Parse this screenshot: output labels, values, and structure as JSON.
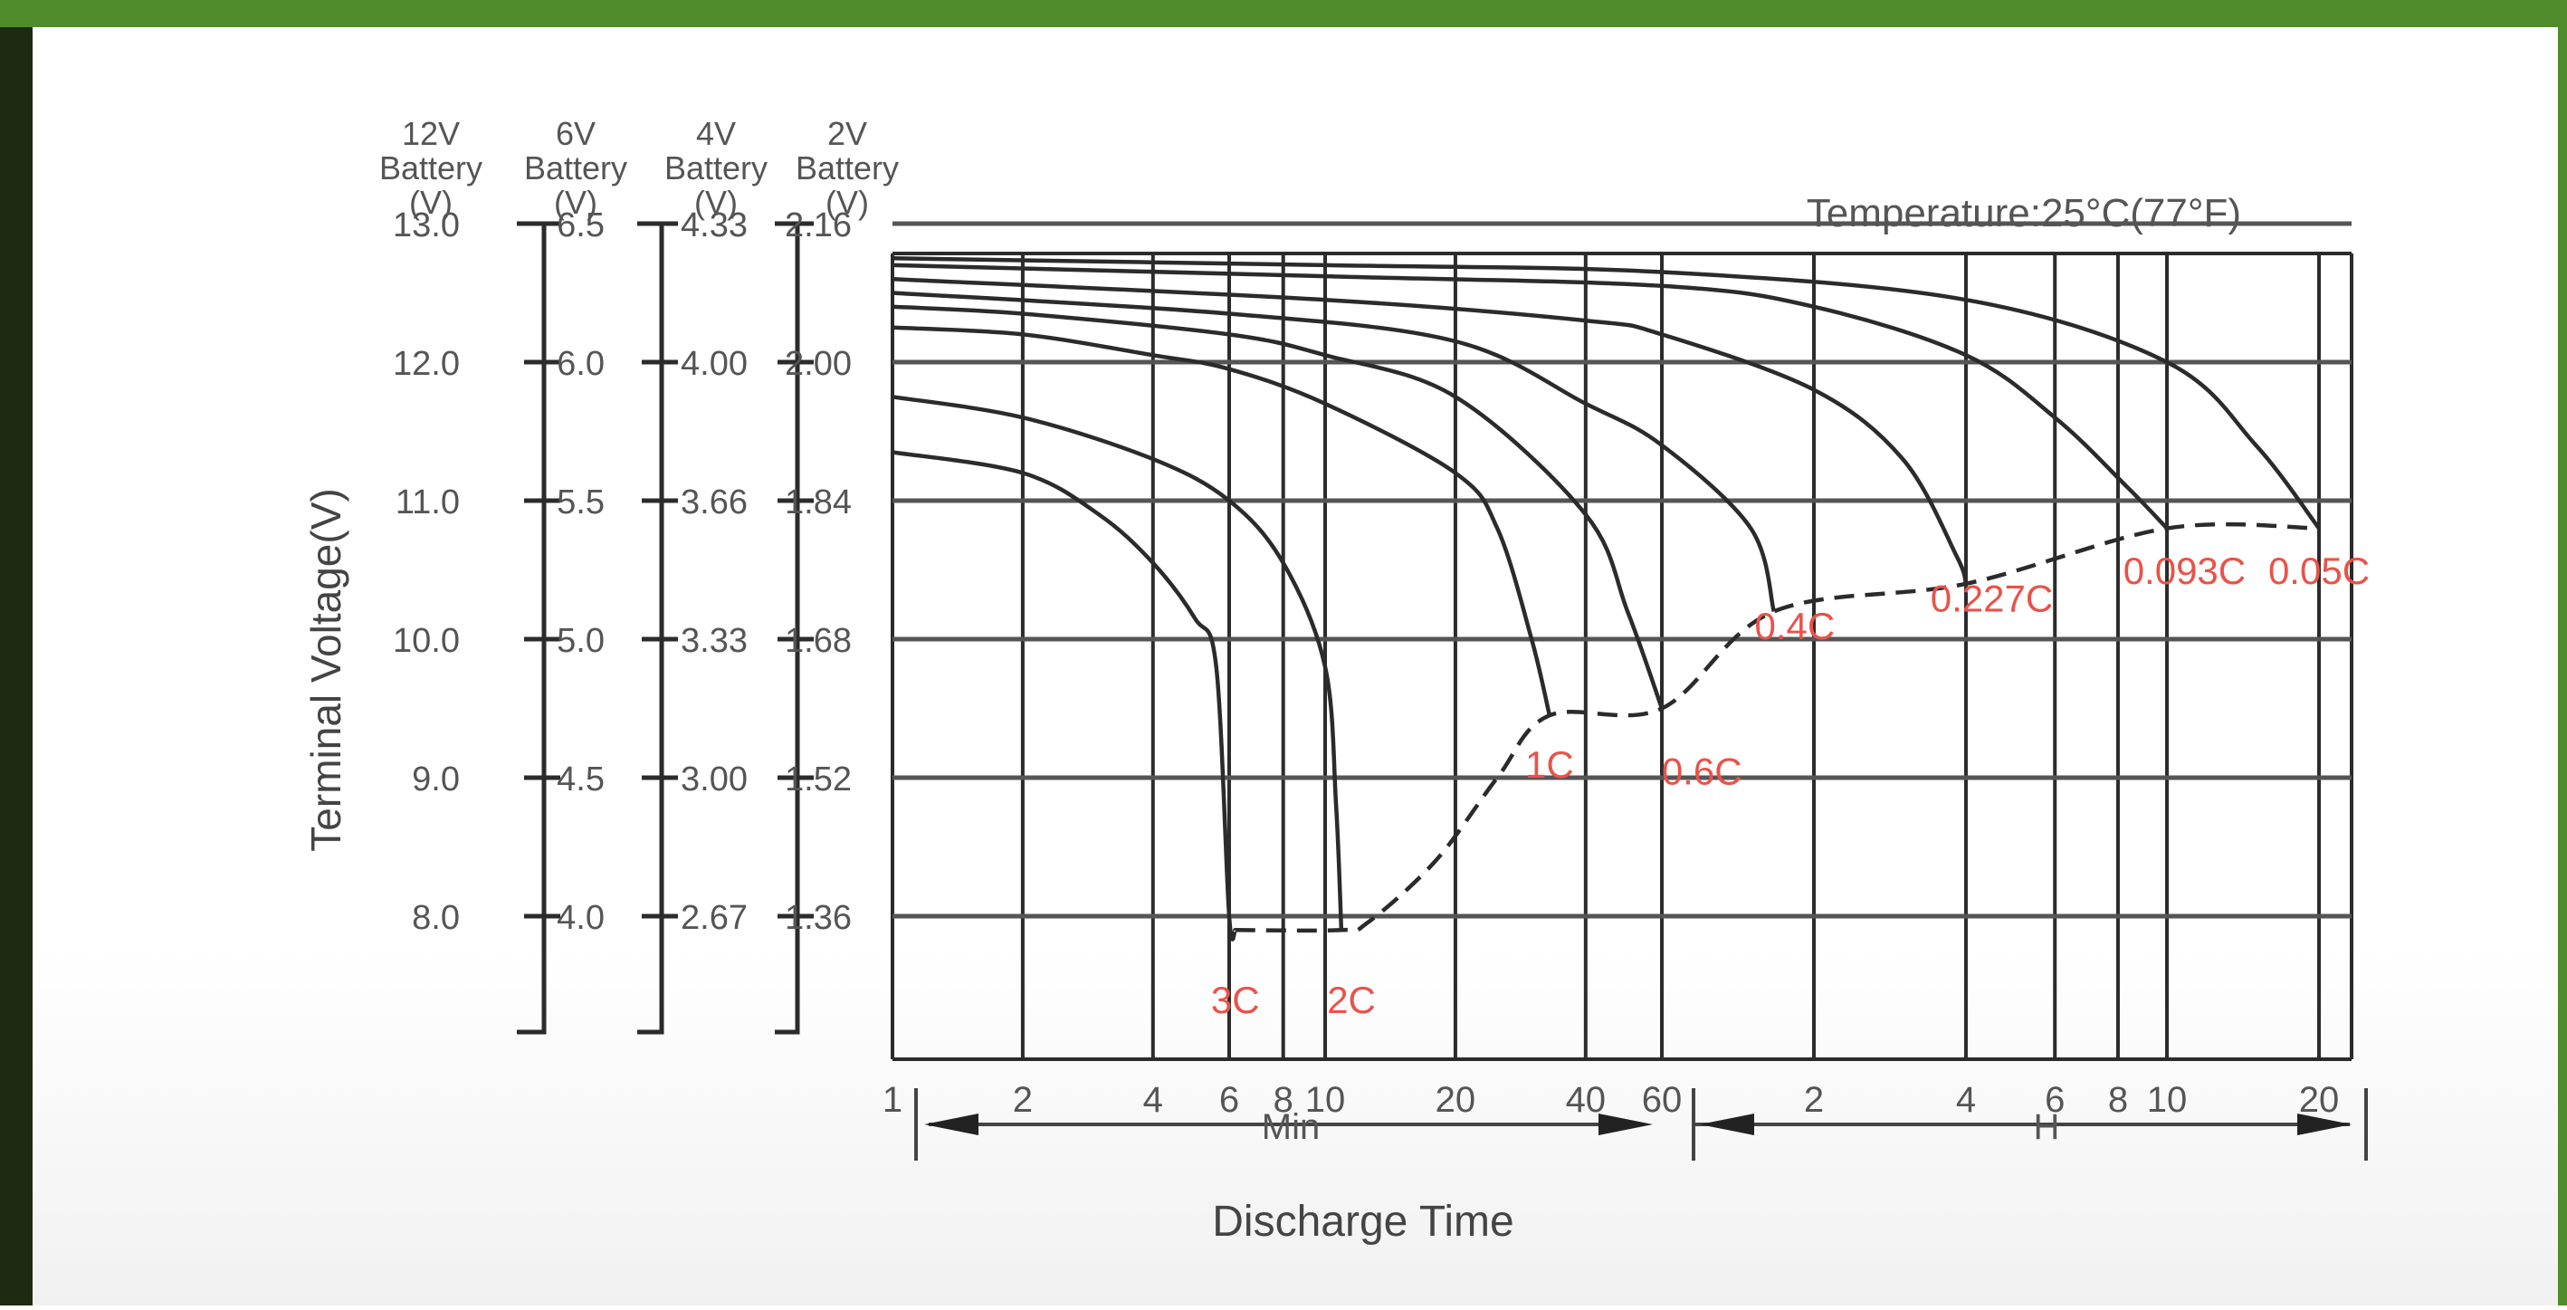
{
  "chart_data": {
    "type": "line",
    "title": "",
    "temperature_label": "Temperature:25°C(77°F)",
    "ylabel": "Terminal Voltage(V)",
    "xlabel": "Discharge Time",
    "x_scale": "log",
    "x_ticks": [
      "1",
      "2",
      "4",
      "6",
      "8",
      "10",
      "20",
      "40",
      "60",
      "2",
      "4",
      "6",
      "8",
      "10",
      "20"
    ],
    "x_unit_labels": {
      "min": "Min",
      "hour": "H"
    },
    "y_scales": [
      {
        "header": [
          "12V",
          "Battery",
          "(V)"
        ],
        "ticks": [
          "13.0",
          "12.0",
          "11.0",
          "10.0",
          "9.0",
          "8.0"
        ],
        "values": [
          13.0,
          12.0,
          11.0,
          10.0,
          9.0,
          8.0
        ]
      },
      {
        "header": [
          "6V",
          "Battery",
          "(V)"
        ],
        "ticks": [
          "6.5",
          "6.0",
          "5.5",
          "5.0",
          "4.5",
          "4.0"
        ]
      },
      {
        "header": [
          "4V",
          "Battery",
          "(V)"
        ],
        "ticks": [
          "4.33",
          "4.00",
          "3.66",
          "3.33",
          "3.00",
          "2.67"
        ]
      },
      {
        "header": [
          "2V",
          "Battery",
          "(V)"
        ],
        "ticks": [
          "2.16",
          "2.00",
          "1.84",
          "1.68",
          "1.52",
          "1.36"
        ]
      }
    ],
    "ylim": [
      7.3,
      13.0
    ],
    "grid": true,
    "series": [
      {
        "name": "3C",
        "points": [
          [
            1,
            11.35
          ],
          [
            2,
            11.2
          ],
          [
            3,
            10.9
          ],
          [
            4,
            10.55
          ],
          [
            5,
            10.15
          ],
          [
            5.6,
            9.8
          ],
          [
            6.0,
            8.0
          ],
          [
            6.2,
            7.9
          ]
        ]
      },
      {
        "name": "2C",
        "points": [
          [
            1,
            11.75
          ],
          [
            2,
            11.6
          ],
          [
            4,
            11.3
          ],
          [
            6,
            11.0
          ],
          [
            8,
            10.55
          ],
          [
            10,
            9.8
          ],
          [
            10.6,
            8.8
          ],
          [
            10.9,
            7.9
          ]
        ]
      },
      {
        "name": "1C",
        "points": [
          [
            1,
            12.25
          ],
          [
            2,
            12.2
          ],
          [
            4,
            12.05
          ],
          [
            6,
            11.95
          ],
          [
            10,
            11.7
          ],
          [
            20,
            11.2
          ],
          [
            25,
            10.8
          ],
          [
            30,
            10.0
          ],
          [
            33,
            9.45
          ]
        ]
      },
      {
        "name": "0.6C",
        "points": [
          [
            1,
            12.4
          ],
          [
            2,
            12.35
          ],
          [
            6,
            12.2
          ],
          [
            10,
            12.05
          ],
          [
            20,
            11.75
          ],
          [
            40,
            10.9
          ],
          [
            50,
            10.2
          ],
          [
            60,
            9.5
          ]
        ]
      },
      {
        "name": "0.4C",
        "points": [
          [
            1,
            12.5
          ],
          [
            6,
            12.35
          ],
          [
            20,
            12.15
          ],
          [
            40,
            11.7
          ],
          [
            60,
            11.4
          ],
          [
            90,
            10.8
          ],
          [
            100,
            10.2
          ]
        ]
      },
      {
        "name": "0.227C",
        "points": [
          [
            1,
            12.6
          ],
          [
            10,
            12.45
          ],
          [
            40,
            12.3
          ],
          [
            60,
            12.2
          ],
          [
            120,
            11.8
          ],
          [
            180,
            11.3
          ],
          [
            230,
            10.6
          ],
          [
            240,
            10.4
          ]
        ]
      },
      {
        "name": "0.093C",
        "points": [
          [
            1,
            12.7
          ],
          [
            10,
            12.62
          ],
          [
            60,
            12.55
          ],
          [
            120,
            12.4
          ],
          [
            240,
            12.05
          ],
          [
            360,
            11.6
          ],
          [
            500,
            11.1
          ],
          [
            600,
            10.8
          ]
        ]
      },
      {
        "name": "0.05C",
        "points": [
          [
            1,
            12.75
          ],
          [
            10,
            12.7
          ],
          [
            60,
            12.65
          ],
          [
            240,
            12.45
          ],
          [
            600,
            12.0
          ],
          [
            900,
            11.4
          ],
          [
            1200,
            10.8
          ]
        ]
      }
    ],
    "end_voltage_line": [
      [
        6.2,
        7.9
      ],
      [
        10.9,
        7.9
      ],
      [
        12.5,
        7.95
      ],
      [
        18,
        8.4
      ],
      [
        25,
        9.0
      ],
      [
        33,
        9.45
      ],
      [
        60,
        9.5
      ],
      [
        100,
        10.2
      ],
      [
        240,
        10.4
      ],
      [
        600,
        10.8
      ],
      [
        1200,
        10.8
      ]
    ],
    "series_label_color": "#e8534a"
  }
}
